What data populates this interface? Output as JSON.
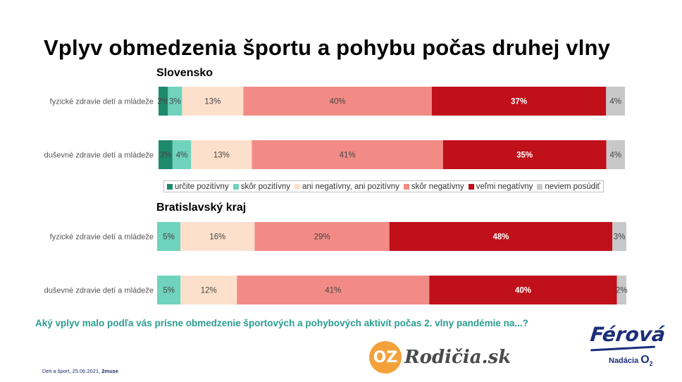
{
  "title": "Vplyv obmedzenia športu a pohybu počas druhej vlny",
  "question": "Aký vplyv malo podľa vás prísne obmedzenie športových a pohybových aktivít počas 2. vlny pandémie na...?",
  "footer": {
    "text": "Deti a šport, 25.06.2021, ",
    "brand": "2muse"
  },
  "logos": {
    "oz_mark": "OZ",
    "oz_name": "Rodičia.sk",
    "foundation_name": "Férová",
    "foundation_sub": "Nadácia",
    "foundation_o2": "O",
    "foundation_o2_sub": "2"
  },
  "legend": [
    {
      "label": "určite pozitívny",
      "color": "#1e8a6c"
    },
    {
      "label": "skôr pozitívny",
      "color": "#6fd3bd"
    },
    {
      "label": "ani negatívny, ani pozitívny",
      "color": "#fde0cc"
    },
    {
      "label": "skôr negatívny",
      "color": "#f28b86"
    },
    {
      "label": "veľmi negatívny",
      "color": "#c0101a"
    },
    {
      "label": "neviem posúdiť",
      "color": "#c8c8c8"
    }
  ],
  "chart_data": [
    {
      "type": "bar",
      "orientation": "horizontal-stacked",
      "title": "Slovensko",
      "categories": [
        "fyzické zdravie detí a mládeže",
        "duševné zdravie detí a mládeže"
      ],
      "series": [
        {
          "name": "určite pozitívny",
          "values": [
            2,
            3
          ]
        },
        {
          "name": "skôr pozitívny",
          "values": [
            3,
            4
          ]
        },
        {
          "name": "ani negatívny, ani pozitívny",
          "values": [
            13,
            13
          ]
        },
        {
          "name": "skôr negatívny",
          "values": [
            40,
            41
          ]
        },
        {
          "name": "veľmi negatívny",
          "values": [
            37,
            35
          ]
        },
        {
          "name": "neviem posúdiť",
          "values": [
            4,
            4
          ]
        }
      ],
      "labels": [
        [
          "2%",
          "3%",
          "13%",
          "40%",
          "37%",
          "4%"
        ],
        [
          "3%",
          "4%",
          "13%",
          "41%",
          "35%",
          "4%"
        ]
      ],
      "xlim": [
        0,
        100
      ],
      "legend": "bottom"
    },
    {
      "type": "bar",
      "orientation": "horizontal-stacked",
      "title": "Bratislavský kraj",
      "categories": [
        "fyzické zdravie detí a mládeže",
        "duševné zdravie detí a mládeže"
      ],
      "series": [
        {
          "name": "určite pozitívny",
          "values": [
            0,
            0
          ]
        },
        {
          "name": "skôr pozitívny",
          "values": [
            5,
            5
          ]
        },
        {
          "name": "ani negatívny, ani pozitívny",
          "values": [
            16,
            12
          ]
        },
        {
          "name": "skôr negatívny",
          "values": [
            29,
            41
          ]
        },
        {
          "name": "veľmi negatívny",
          "values": [
            48,
            40
          ]
        },
        {
          "name": "neviem posúdiť",
          "values": [
            3,
            2
          ]
        }
      ],
      "labels": [
        [
          "",
          "5%",
          "16%",
          "29%",
          "48%",
          "3%"
        ],
        [
          "",
          "5%",
          "12%",
          "41%",
          "40%",
          "2%"
        ]
      ],
      "xlim": [
        0,
        100
      ]
    }
  ]
}
